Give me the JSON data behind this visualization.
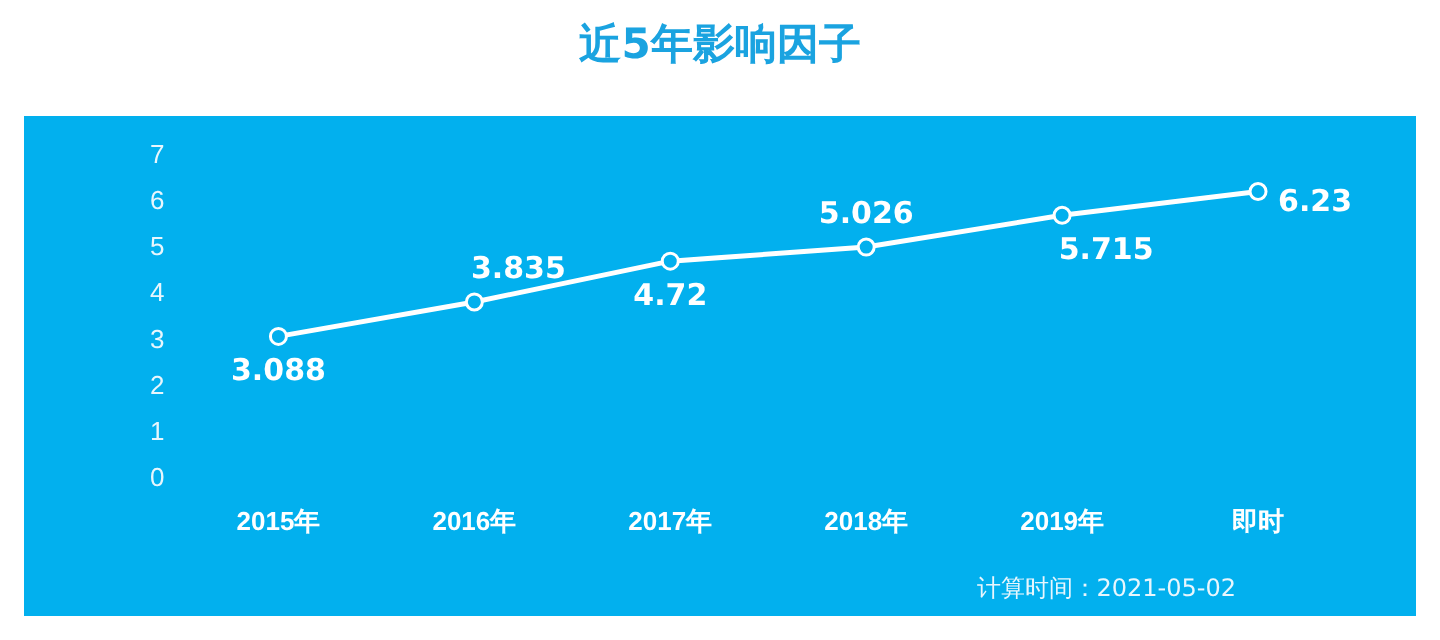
{
  "chart_data": {
    "type": "line",
    "title": "近5年影响因子",
    "categories": [
      "2015年",
      "2016年",
      "2017年",
      "2018年",
      "2019年",
      "即时"
    ],
    "values": [
      3.088,
      3.835,
      4.72,
      5.026,
      5.715,
      6.23
    ],
    "color": "#ffffff",
    "marker": "circle",
    "data_labels": true,
    "grid": false,
    "legend": false,
    "ylim": [
      0,
      7
    ],
    "yticks": [
      0,
      1,
      2,
      3,
      4,
      5,
      6,
      7
    ],
    "annotations": [
      "计算时间：2021-05-02"
    ]
  }
}
